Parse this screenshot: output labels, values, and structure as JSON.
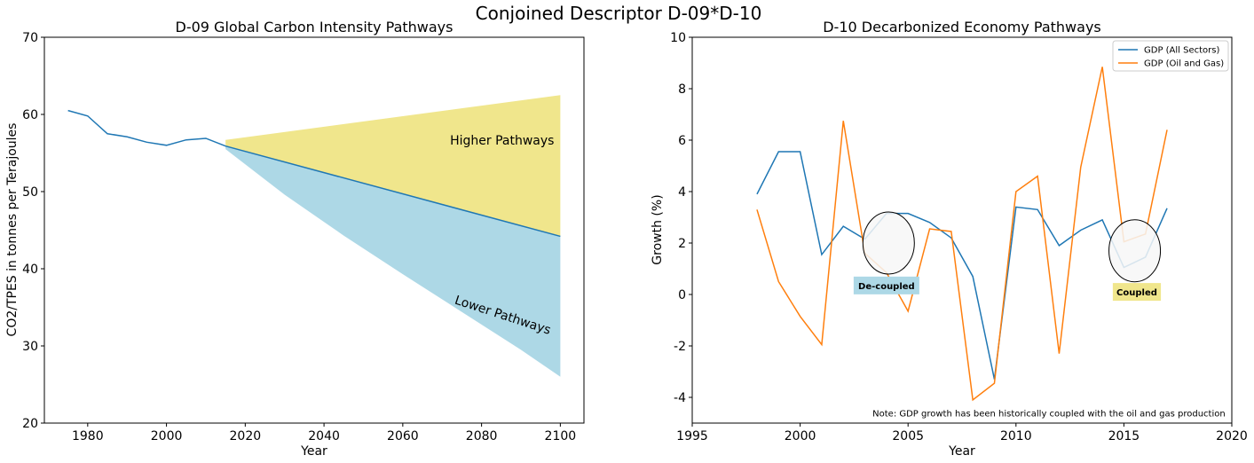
{
  "figure": {
    "suptitle": "Conjoined Descriptor D-09*D-10"
  },
  "chart_data": [
    {
      "type": "line",
      "title": "D-09 Global Carbon Intensity Pathways",
      "xlabel": "Year",
      "ylabel": "CO2/TPES in tonnes per Terajoules",
      "xlim": [
        1969,
        2106
      ],
      "ylim": [
        20,
        70
      ],
      "xticks": [
        1980,
        2000,
        2020,
        2040,
        2060,
        2080,
        2100
      ],
      "yticks": [
        20,
        30,
        40,
        50,
        60,
        70
      ],
      "grid": false,
      "series": [
        {
          "color": "#1f77b4",
          "x": [
            1975,
            1980,
            1985,
            1990,
            1995,
            2000,
            2005,
            2010,
            2015,
            2100
          ],
          "y": [
            60.5,
            59.8,
            57.5,
            57.1,
            56.4,
            56.0,
            56.7,
            56.9,
            55.9,
            44.2
          ]
        }
      ],
      "bands": [
        {
          "label": "Higher Pathways",
          "color": "#f0e68c",
          "x": [
            2015,
            2100
          ],
          "upper": [
            56.7,
            62.5
          ],
          "lower": [
            55.9,
            44.2
          ]
        },
        {
          "label": "Lower Pathways",
          "color": "#add8e6",
          "x": [
            2015,
            2030,
            2045,
            2060,
            2075,
            2090,
            2100
          ],
          "upper": [
            55.9,
            53.8,
            51.8,
            49.7,
            47.6,
            45.6,
            44.2
          ],
          "lower": [
            55.5,
            49.6,
            44.3,
            39.3,
            34.4,
            29.5,
            26.0
          ]
        }
      ],
      "annotations": [
        {
          "text": "Higher Pathways",
          "x": 2072,
          "y": 56.1,
          "rotation": 0
        },
        {
          "text": "Lower Pathways",
          "x": 2073,
          "y": 35.5,
          "rotation": 18
        }
      ]
    },
    {
      "type": "line",
      "title": "D-10 Decarbonized Economy Pathways",
      "xlabel": "Year",
      "ylabel": "Growth (%)",
      "xlim": [
        1995,
        2020
      ],
      "ylim": [
        -5,
        10
      ],
      "xticks": [
        1995,
        2000,
        2005,
        2010,
        2015,
        2020
      ],
      "yticks": [
        -4,
        -2,
        0,
        2,
        4,
        6,
        8,
        10
      ],
      "grid": false,
      "legend": "top-right",
      "x": [
        1998,
        1999,
        2000,
        2001,
        2002,
        2003,
        2004,
        2005,
        2006,
        2007,
        2008,
        2009,
        2010,
        2011,
        2012,
        2013,
        2014,
        2015,
        2016,
        2017
      ],
      "series": [
        {
          "name": "GDP (All Sectors)",
          "color": "#1f77b4",
          "values": [
            3.9,
            5.55,
            5.55,
            1.55,
            2.65,
            2.15,
            3.15,
            3.15,
            2.8,
            2.2,
            0.7,
            -3.3,
            3.4,
            3.3,
            1.9,
            2.5,
            2.9,
            1.05,
            1.45,
            3.35
          ]
        },
        {
          "name": "GDP (Oil and Gas)",
          "color": "#ff7f0e",
          "values": [
            3.3,
            0.5,
            -0.85,
            -1.95,
            6.75,
            1.6,
            0.85,
            -0.65,
            2.55,
            2.45,
            -4.1,
            -3.45,
            4.0,
            4.6,
            -2.3,
            4.95,
            8.85,
            2.05,
            2.35,
            6.4
          ]
        }
      ],
      "annotations": [
        {
          "text": "De-coupled",
          "x": 2004.0,
          "y": 0.35,
          "box_color": "#add8e6",
          "circle_center": [
            2004.1,
            2.0
          ]
        },
        {
          "text": "Coupled",
          "x": 2015.6,
          "y": 0.1,
          "box_color": "#f0e68c",
          "circle_center": [
            2015.5,
            1.7
          ]
        },
        {
          "text": "Note: GDP growth has been historically coupled with the oil and gas production",
          "x": 2019.7,
          "y": -4.6
        }
      ]
    }
  ]
}
